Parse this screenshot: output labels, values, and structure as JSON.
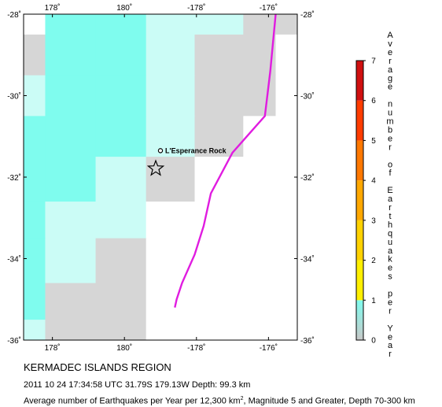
{
  "map": {
    "lon_range": [
      177.2,
      184.8
    ],
    "lat_range": [
      -36,
      -28
    ],
    "x_ticks": [
      {
        "lon": 178,
        "label": "178˚"
      },
      {
        "lon": 180,
        "label": "180˚"
      },
      {
        "lon": 182,
        "label": "-178˚"
      },
      {
        "lon": 184,
        "label": "-176˚"
      }
    ],
    "y_ticks": [
      {
        "lat": -28,
        "label": "-28˚"
      },
      {
        "lat": -30,
        "label": "-30˚"
      },
      {
        "lat": -32,
        "label": "-32˚"
      },
      {
        "lat": -34,
        "label": "-34˚"
      },
      {
        "lat": -36,
        "label": "-36˚"
      }
    ],
    "cell_colors": {
      "C": "#7ffcee",
      "L": "#cbfcf6",
      "G": "#d6d6d6",
      "W": "#ffffff"
    },
    "grid": [
      [
        "W",
        "C",
        "C",
        "L",
        "L",
        "G",
        "G"
      ],
      [
        "G",
        "C",
        "C",
        "L",
        "G",
        "G",
        "W"
      ],
      [
        "L",
        "C",
        "C",
        "L",
        "G",
        "G",
        "W"
      ],
      [
        "C",
        "C",
        "C",
        "L",
        "G",
        "W",
        "W"
      ],
      [
        "C",
        "C",
        "L",
        "G",
        "W",
        "W",
        "W"
      ],
      [
        "C",
        "L",
        "L",
        "W",
        "W",
        "W",
        "W"
      ],
      [
        "C",
        "L",
        "G",
        "W",
        "W",
        "W",
        "W"
      ],
      [
        "C",
        "G",
        "G",
        "W",
        "W",
        "W",
        "W"
      ],
      [
        "L",
        "G",
        "G",
        "W",
        "W",
        "W",
        "W"
      ]
    ],
    "grid_lon_edges": [
      177.2,
      177.8,
      179.2,
      180.6,
      181.95,
      183.3,
      184.2,
      184.8
    ],
    "grid_lat_edges": [
      -28,
      -28.5,
      -29.5,
      -30.5,
      -31.5,
      -32.6,
      -33.5,
      -34.6,
      -35.5,
      -36
    ],
    "trench_color": "#e01ce0",
    "trench": [
      [
        184.2,
        -28
      ],
      [
        184.05,
        -29.4
      ],
      [
        183.9,
        -30.5
      ],
      [
        183.5,
        -30.9
      ],
      [
        183.0,
        -31.4
      ],
      [
        182.7,
        -31.9
      ],
      [
        182.4,
        -32.4
      ],
      [
        182.2,
        -33.2
      ],
      [
        181.95,
        -33.9
      ],
      [
        181.6,
        -34.6
      ],
      [
        181.45,
        -35.0
      ],
      [
        181.4,
        -35.2
      ]
    ],
    "place": {
      "name": "L'Esperance Rock",
      "lon": 181.0,
      "lat": -31.35
    },
    "epicenter": {
      "lon": 180.87,
      "lat": -31.79
    }
  },
  "legend": {
    "title": "Average number of Earthquakes per Year",
    "ticks": [
      "0",
      "1",
      "2",
      "3",
      "4",
      "5",
      "6",
      "7"
    ],
    "segments": [
      {
        "from": 0,
        "to": 1,
        "color": "#9adedd"
      },
      {
        "from": 1,
        "to": 2,
        "color": "#fff000"
      },
      {
        "from": 2,
        "to": 3,
        "color": "#ffd200"
      },
      {
        "from": 3,
        "to": 4,
        "color": "#ffa800"
      },
      {
        "from": 4,
        "to": 5,
        "color": "#ff7800"
      },
      {
        "from": 5,
        "to": 6,
        "color": "#ff3c00"
      },
      {
        "from": 6,
        "to": 7,
        "color": "#d01010"
      }
    ]
  },
  "caption": {
    "region": "KERMADEC ISLANDS REGION",
    "event": "2011 10 24 17:34:58 UTC 31.79S 179.13W Depth: 99.3 km",
    "note_before": "Average number of Earthquakes per Year per 12,300 km",
    "note_sup": "2",
    "note_after": ", Magnitude 5 and Greater, Depth 70-300 km"
  }
}
